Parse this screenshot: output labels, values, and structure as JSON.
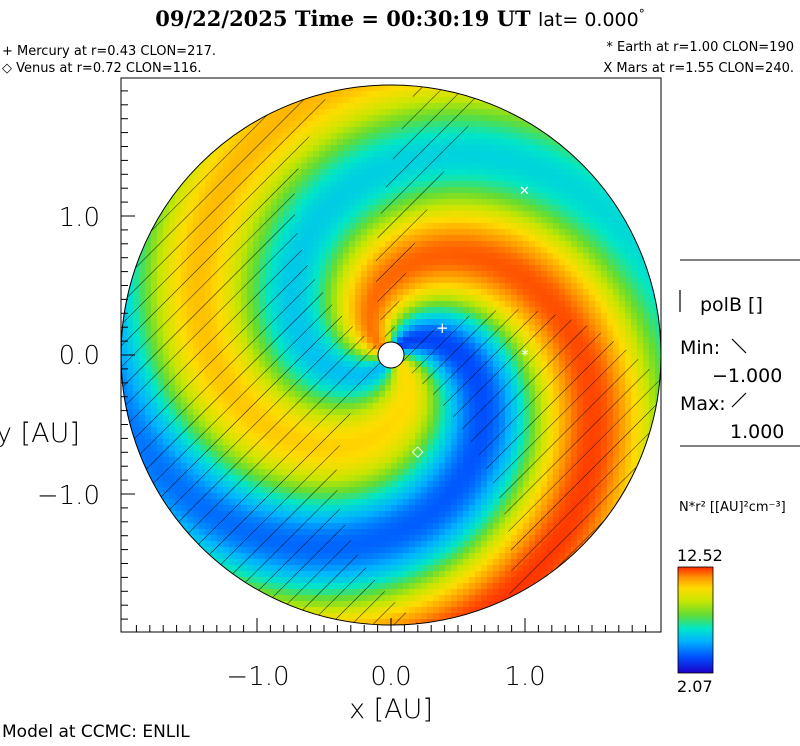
{
  "header": {
    "date": "09/22/2025",
    "time_label": "Time = 00:30:19 UT",
    "lat_label": "lat= 0.000",
    "lat_degree": "°"
  },
  "planets": {
    "mercury": "+ Mercury at r=0.43 CLON=217.",
    "venus": "◇ Venus at r=0.72 CLON=116.",
    "earth": "* Earth at  r=1.00 CLON=190",
    "mars": "X Mars at r=1.55 CLON=240."
  },
  "sidebar": {
    "field_name": "polB []",
    "min_label": "Min:",
    "min_value": "−1.000",
    "max_label": "Max:",
    "max_value": "1.000",
    "quantity_label": "N*r² [[AU]²cm⁻³]",
    "colorbar_max": "12.52",
    "colorbar_min": "2.07"
  },
  "footer": {
    "text": "Model at CCMC: ENLIL"
  },
  "chart_data": {
    "type": "heatmap",
    "xlabel": "x [AU]",
    "ylabel": "y [AU]",
    "xlim": [
      -2.0,
      2.0
    ],
    "ylim": [
      -2.0,
      2.0
    ],
    "xticks": [
      -1.0,
      0.0,
      1.0
    ],
    "xtick_labels": [
      "−1.0",
      "0.0",
      "1.0"
    ],
    "yticks": [
      -1.0,
      0.0,
      1.0
    ],
    "ytick_labels": [
      "−1.0",
      "0.0",
      "1.0"
    ],
    "outer_radius_au": 2.0,
    "inner_radius_au": 0.1,
    "colorscale": [
      "#1a00c8",
      "#0050ff",
      "#00b4ff",
      "#00e6c8",
      "#64dc32",
      "#c8e600",
      "#ffdc00",
      "#ff9600",
      "#ff2800"
    ],
    "value_min": 2.07,
    "value_max": 12.52,
    "planets": [
      {
        "name": "Mercury",
        "symbol": "+",
        "r_au": 0.43,
        "clon_deg": 217
      },
      {
        "name": "Venus",
        "symbol": "◇",
        "r_au": 0.72,
        "clon_deg": 116
      },
      {
        "name": "Earth",
        "symbol": "*",
        "r_au": 1.0,
        "clon_deg": 190
      },
      {
        "name": "Mars",
        "symbol": "X",
        "r_au": 1.55,
        "clon_deg": 240
      }
    ]
  }
}
